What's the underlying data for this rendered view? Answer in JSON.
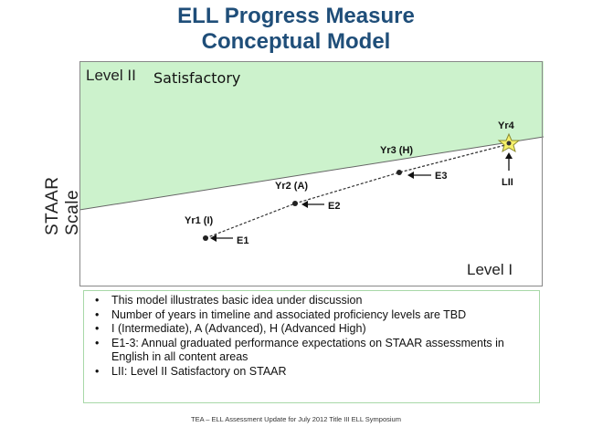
{
  "title_line1": "ELL Progress Measure",
  "title_line2": "Conceptual Model",
  "y_axis_label": "STAAR Scale",
  "region_top_label_a": "Level II",
  "region_top_label_b": "Satisfactory",
  "region_bottom_label": "Level I",
  "points": [
    {
      "year": "Yr1 (I)",
      "expectation": "E1"
    },
    {
      "year": "Yr2 (A)",
      "expectation": "E2"
    },
    {
      "year": "Yr3 (H)",
      "expectation": "E3"
    },
    {
      "year": "Yr4",
      "marker": "LII"
    }
  ],
  "bullets": [
    "This model illustrates basic idea under discussion",
    "Number of years in timeline and associated proficiency levels are TBD",
    "I (Intermediate), A (Advanced), H (Advanced High)",
    "E1-3: Annual graduated performance expectations on STAAR assessments in English in all content areas",
    "LII: Level II Satisfactory on STAAR"
  ],
  "footer": "TEA – ELL Assessment Update for July 2012 Title III ELL Symposium",
  "colors": {
    "title": "#1f4e79",
    "level2_region": "#ccf2cc",
    "star": "#f5f06a",
    "frame": "#888888"
  }
}
